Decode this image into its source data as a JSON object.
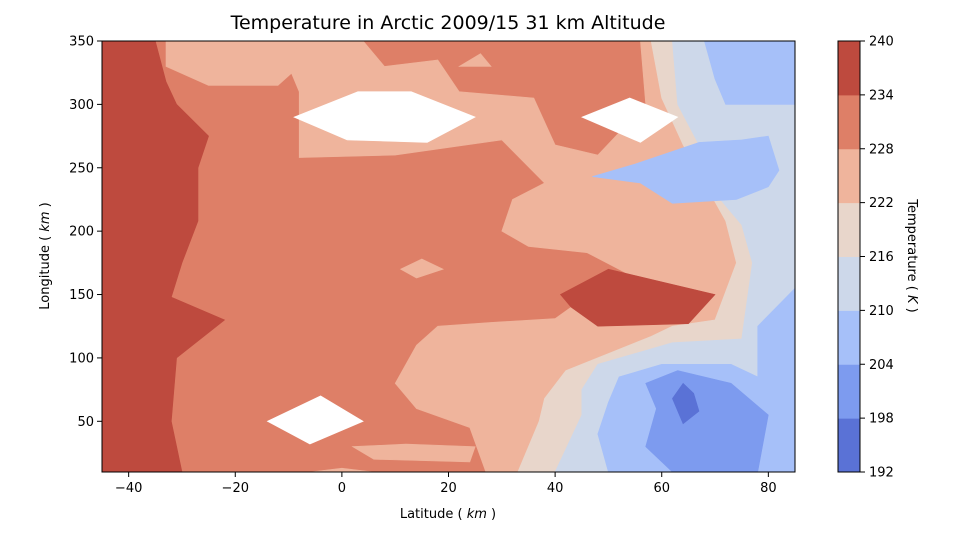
{
  "chart_data": {
    "type": "heatmap",
    "subtype": "filled-contour",
    "title": "Temperature in Arctic 2009/15 31 km Altitude",
    "xlabel": "Latitude",
    "xlabel_unit": "km",
    "ylabel": "Longitude",
    "ylabel_unit": "km",
    "xlim": [
      -45,
      85
    ],
    "ylim": [
      10,
      350
    ],
    "xticks": [
      "-40",
      "-20",
      "0",
      "20",
      "40",
      "60",
      "80"
    ],
    "yticks": [
      "50",
      "100",
      "150",
      "200",
      "250",
      "300",
      "350"
    ],
    "colorbar": {
      "label": "Temperature",
      "unit": "K",
      "levels": [
        192,
        198,
        204,
        210,
        216,
        222,
        228,
        234,
        240
      ],
      "colors": [
        "#5a72d6",
        "#7d9bef",
        "#a6c0f9",
        "#cdd8ea",
        "#e8d6cb",
        "#efb49c",
        "#de7f67",
        "#be4a3e"
      ]
    },
    "regions": [
      {
        "range": [
          228,
          234
        ],
        "polygon": [
          [
            -45,
            10
          ],
          [
            85,
            10
          ],
          [
            85,
            350
          ],
          [
            -45,
            350
          ]
        ]
      },
      {
        "range": [
          234,
          240
        ],
        "polygon": [
          [
            -45,
            10
          ],
          [
            -30,
            10
          ],
          [
            -32,
            50
          ],
          [
            -31,
            100
          ],
          [
            -22,
            130
          ],
          [
            -32,
            148
          ],
          [
            -30,
            175
          ],
          [
            -27,
            208
          ],
          [
            -27,
            250
          ],
          [
            -25,
            275
          ],
          [
            -31,
            300
          ],
          [
            -33,
            318
          ],
          [
            -35,
            350
          ],
          [
            -45,
            350
          ]
        ]
      },
      {
        "range": [
          222,
          228
        ],
        "polygon": [
          [
            -33,
            350
          ],
          [
            -33,
            330
          ],
          [
            -25,
            315
          ],
          [
            -12,
            315
          ],
          [
            -8,
            330
          ],
          [
            -8,
            350
          ]
        ]
      },
      {
        "range": [
          222,
          228
        ],
        "polygon": [
          [
            -8,
            350
          ],
          [
            4,
            350
          ],
          [
            8,
            330
          ],
          [
            18,
            335
          ],
          [
            22,
            310
          ],
          [
            36,
            305
          ],
          [
            40,
            268
          ],
          [
            48,
            260
          ],
          [
            57,
            300
          ],
          [
            56,
            350
          ],
          [
            85,
            350
          ],
          [
            85,
            10
          ],
          [
            27,
            10
          ],
          [
            24,
            45
          ],
          [
            14,
            60
          ],
          [
            10,
            80
          ],
          [
            14,
            110
          ],
          [
            18,
            125
          ],
          [
            28,
            128
          ],
          [
            40,
            131
          ],
          [
            43,
            140
          ],
          [
            56,
            140
          ],
          [
            62,
            148
          ],
          [
            46,
            183
          ],
          [
            35,
            188
          ],
          [
            30,
            200
          ],
          [
            32,
            225
          ],
          [
            38,
            238
          ],
          [
            30,
            272
          ],
          [
            10,
            260
          ],
          [
            -8,
            258
          ],
          [
            -8,
            310
          ],
          [
            -10,
            330
          ]
        ]
      },
      {
        "range": [
          216,
          222
        ],
        "polygon": [
          [
            33,
            10
          ],
          [
            37,
            50
          ],
          [
            38,
            68
          ],
          [
            42,
            90
          ],
          [
            58,
            117
          ],
          [
            62,
            125
          ],
          [
            70,
            130
          ],
          [
            74,
            175
          ],
          [
            72,
            208
          ],
          [
            68,
            238
          ],
          [
            64,
            268
          ],
          [
            60,
            305
          ],
          [
            58,
            350
          ],
          [
            85,
            350
          ],
          [
            85,
            10
          ]
        ]
      },
      {
        "range": [
          210,
          216
        ],
        "polygon": [
          [
            40,
            10
          ],
          [
            45,
            55
          ],
          [
            45,
            75
          ],
          [
            48,
            95
          ],
          [
            62,
            112
          ],
          [
            75,
            115
          ],
          [
            77,
            175
          ],
          [
            75,
            205
          ],
          [
            70,
            230
          ],
          [
            68,
            260
          ],
          [
            63,
            300
          ],
          [
            62,
            350
          ],
          [
            85,
            350
          ],
          [
            85,
            10
          ]
        ]
      },
      {
        "range": [
          204,
          210
        ],
        "polygon": [
          [
            50,
            10
          ],
          [
            48,
            40
          ],
          [
            50,
            65
          ],
          [
            52,
            85
          ],
          [
            60,
            95
          ],
          [
            73,
            95
          ],
          [
            78,
            85
          ],
          [
            78,
            125
          ],
          [
            85,
            155
          ],
          [
            85,
            10
          ]
        ]
      },
      {
        "range": [
          204,
          210
        ],
        "polygon": [
          [
            68,
            350
          ],
          [
            70,
            320
          ],
          [
            72,
            300
          ],
          [
            85,
            300
          ],
          [
            85,
            350
          ]
        ]
      },
      {
        "range": [
          204,
          210
        ],
        "polygon": [
          [
            47,
            243
          ],
          [
            55,
            253
          ],
          [
            67,
            270
          ],
          [
            75,
            272
          ],
          [
            80,
            275
          ],
          [
            82,
            248
          ],
          [
            80,
            235
          ],
          [
            74,
            225
          ],
          [
            62,
            222
          ],
          [
            56,
            238
          ]
        ]
      },
      {
        "range": [
          198,
          204
        ],
        "polygon": [
          [
            57,
            30
          ],
          [
            59,
            60
          ],
          [
            57,
            80
          ],
          [
            63,
            90
          ],
          [
            73,
            80
          ],
          [
            80,
            55
          ],
          [
            78,
            10
          ],
          [
            62,
            10
          ]
        ]
      },
      {
        "range": [
          192,
          198
        ],
        "polygon": [
          [
            64,
            48
          ],
          [
            67,
            58
          ],
          [
            66,
            72
          ],
          [
            64,
            80
          ],
          [
            62,
            68
          ]
        ]
      },
      {
        "range": [
          234,
          240
        ],
        "polygon": [
          [
            41,
            150
          ],
          [
            50,
            170
          ],
          [
            60,
            160
          ],
          [
            70,
            150
          ],
          [
            65,
            127
          ],
          [
            48,
            125
          ],
          [
            43,
            140
          ]
        ]
      },
      {
        "range": [
          222,
          228
        ],
        "polygon": [
          [
            11,
            170
          ],
          [
            15,
            178
          ],
          [
            19,
            170
          ],
          [
            14,
            163
          ]
        ]
      },
      {
        "range": [
          222,
          228
        ],
        "polygon": [
          [
            22,
            330
          ],
          [
            26,
            340
          ],
          [
            28,
            330
          ]
        ]
      },
      {
        "range": [
          222,
          228
        ],
        "polygon": [
          [
            2,
            30
          ],
          [
            12,
            32
          ],
          [
            25,
            30
          ],
          [
            24,
            18
          ],
          [
            6,
            20
          ]
        ]
      },
      {
        "range": [
          222,
          228
        ],
        "polygon": [
          [
            -6,
            10
          ],
          [
            0,
            13
          ],
          [
            6,
            10
          ]
        ]
      },
      {
        "range": [],
        "polygon": [
          [
            -9,
            290
          ],
          [
            3,
            310
          ],
          [
            13,
            310
          ],
          [
            25,
            290
          ],
          [
            16,
            270
          ],
          [
            1,
            272
          ]
        ],
        "note": "undefined (white)"
      },
      {
        "range": [],
        "polygon": [
          [
            45,
            290
          ],
          [
            54,
            305
          ],
          [
            63,
            290
          ],
          [
            56,
            270
          ]
        ],
        "note": "undefined (white)"
      },
      {
        "range": [],
        "polygon": [
          [
            -14,
            50
          ],
          [
            -4,
            70
          ],
          [
            4,
            50
          ],
          [
            -6,
            32
          ]
        ],
        "note": "undefined (white)"
      }
    ]
  }
}
